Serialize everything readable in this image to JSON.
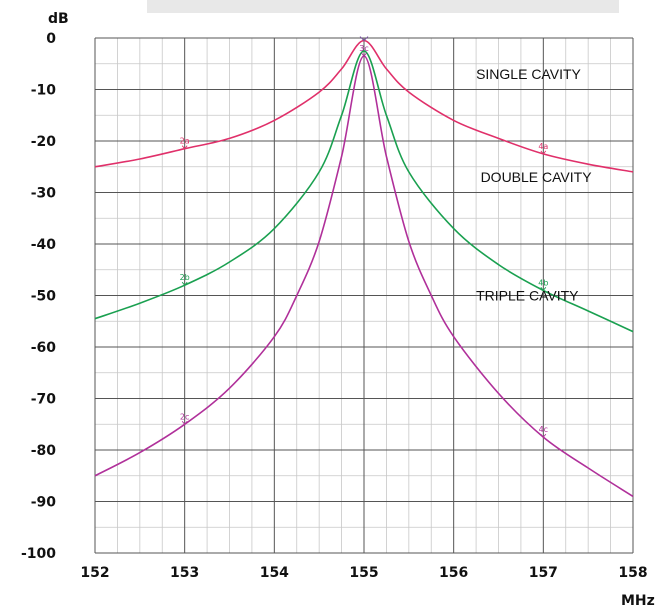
{
  "chart_data": {
    "type": "line",
    "title": "",
    "xlabel": "MHz",
    "ylabel": "dB",
    "xlim": [
      152,
      158
    ],
    "ylim": [
      -100,
      0
    ],
    "x_ticks": [
      152,
      153,
      154,
      155,
      156,
      157,
      158
    ],
    "y_ticks": [
      0,
      -10,
      -20,
      -30,
      -40,
      -50,
      -60,
      -70,
      -80,
      -90,
      -100
    ],
    "x_tick_labels": [
      "152",
      "153",
      "154",
      "155",
      "156",
      "157",
      "158"
    ],
    "y_tick_labels": [
      "0",
      "-10",
      "-20",
      "-30",
      "-40",
      "-50",
      "-60",
      "-70",
      "-80",
      "-90",
      "-100"
    ],
    "grid": true,
    "series": [
      {
        "name": "SINGLE CAVITY",
        "color": "#e0306a",
        "x": [
          152,
          152.5,
          153,
          153.5,
          154,
          154.5,
          154.75,
          155,
          155.25,
          155.5,
          156,
          156.5,
          157,
          157.5,
          158
        ],
        "y": [
          -25,
          -23.5,
          -21.5,
          -19.5,
          -16,
          -10.5,
          -6,
          -0.5,
          -6,
          -10.5,
          -16,
          -19.5,
          -22.5,
          -24.5,
          -26
        ]
      },
      {
        "name": "DOUBLE CAVITY",
        "color": "#1aa050",
        "x": [
          152,
          152.5,
          153,
          153.5,
          154,
          154.5,
          154.75,
          155,
          155.25,
          155.5,
          156,
          156.5,
          157,
          157.5,
          158
        ],
        "y": [
          -54.5,
          -51.5,
          -48,
          -43.5,
          -37,
          -26,
          -15,
          -2.5,
          -15,
          -26,
          -37,
          -44,
          -49,
          -53,
          -57
        ]
      },
      {
        "name": "TRIPLE CAVITY",
        "color": "#b0309a",
        "x": [
          152,
          152.5,
          153,
          153.5,
          154,
          154.25,
          154.5,
          154.75,
          155,
          155.25,
          155.5,
          155.75,
          156,
          156.5,
          157,
          157.5,
          158
        ],
        "y": [
          -85,
          -80.5,
          -75,
          -68,
          -58,
          -50,
          -39.5,
          -23,
          -3.5,
          -23,
          -39.5,
          -50,
          -58,
          -69,
          -77.5,
          -83.5,
          -89
        ]
      }
    ],
    "annotations": [
      {
        "text": "SINGLE CAVITY",
        "x": 156.25,
        "y": -8
      },
      {
        "text": "DOUBLE CAVITY",
        "x": 156.3,
        "y": -28
      },
      {
        "text": "TRIPLE CAVITY",
        "x": 156.25,
        "y": -51
      }
    ],
    "markers": [
      {
        "label": "2a",
        "x": 153,
        "y": -21.5,
        "color": "#e0306a"
      },
      {
        "label": "4a",
        "x": 157,
        "y": -22.5,
        "color": "#e0306a"
      },
      {
        "label": "2b",
        "x": 153,
        "y": -48,
        "color": "#1aa050"
      },
      {
        "label": "4b",
        "x": 157,
        "y": -49,
        "color": "#1aa050"
      },
      {
        "label": "2c",
        "x": 153,
        "y": -75,
        "color": "#b0309a"
      },
      {
        "label": "4c",
        "x": 157,
        "y": -77.5,
        "color": "#b0309a"
      },
      {
        "label": "3c",
        "x": 155,
        "y": -3.5,
        "color": "#b0309a"
      }
    ]
  }
}
